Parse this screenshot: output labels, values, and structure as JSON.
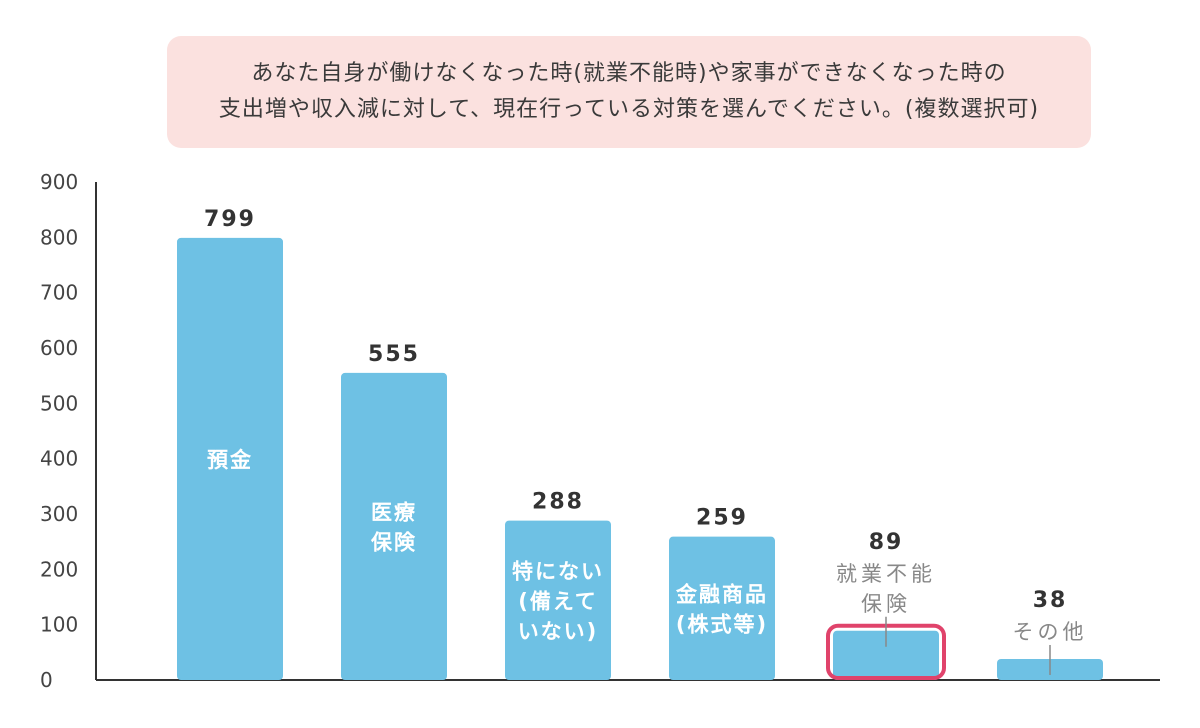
{
  "question": {
    "line1": "あなた自身が働けなくなった時(就業不能時)や家事ができなくなった時の",
    "line2": "支出増や収入減に対して、現在行っている対策を選んでください。(複数選択可)"
  },
  "chart_data": {
    "type": "bar",
    "categories": [
      [
        "預金"
      ],
      [
        "医療",
        "保険"
      ],
      [
        "特にない",
        "(備えて",
        "いない)"
      ],
      [
        "金融商品",
        "(株式等)"
      ],
      [
        "就業不能",
        "保険"
      ],
      [
        "その他"
      ]
    ],
    "values": [
      799,
      555,
      288,
      259,
      89,
      38
    ],
    "label_placement": [
      "inside",
      "inside",
      "inside",
      "inside",
      "outside",
      "outside"
    ],
    "highlighted": [
      false,
      false,
      false,
      false,
      true,
      false
    ],
    "ylim": [
      0,
      900
    ],
    "yticks": [
      0,
      100,
      200,
      300,
      400,
      500,
      600,
      700,
      800,
      900
    ],
    "grid": false,
    "colors": {
      "bar": "#6ec1e4",
      "highlight": "#e0436b",
      "inside_label": "#ffffff",
      "outside_label": "#888888",
      "value_label": "#333333",
      "axis": "#333333"
    }
  }
}
